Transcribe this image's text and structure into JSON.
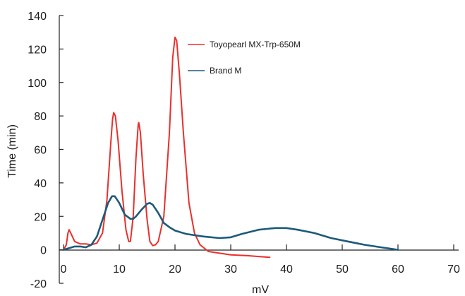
{
  "chart_data": {
    "type": "line",
    "title": "",
    "xlabel": "mV",
    "ylabel": "Time (min)",
    "xlim": [
      0,
      70
    ],
    "ylim": [
      -20,
      140
    ],
    "x_ticks": [
      "0",
      "10",
      "20",
      "30",
      "40",
      "50",
      "60",
      "70"
    ],
    "y_ticks": [
      "140",
      "120",
      "100",
      "80",
      "60",
      "40",
      "20",
      "0",
      "-20"
    ],
    "grid": false,
    "legend_position": "top-right",
    "series": [
      {
        "name": "Toyopearl MX-Trp-650M",
        "color": "#e8302c",
        "points": [
          [
            0,
            0
          ],
          [
            0.5,
            3
          ],
          [
            0.8,
            10
          ],
          [
            1,
            12
          ],
          [
            1.3,
            10
          ],
          [
            2,
            5
          ],
          [
            3,
            3.5
          ],
          [
            4,
            3.5
          ],
          [
            5,
            3
          ],
          [
            6,
            4
          ],
          [
            7,
            10
          ],
          [
            7.8,
            30
          ],
          [
            8.5,
            65
          ],
          [
            8.8,
            78
          ],
          [
            9,
            82
          ],
          [
            9.3,
            80
          ],
          [
            9.8,
            65
          ],
          [
            10.5,
            35
          ],
          [
            11.2,
            12
          ],
          [
            11.7,
            5
          ],
          [
            12,
            5
          ],
          [
            12.5,
            20
          ],
          [
            13,
            55
          ],
          [
            13.4,
            75
          ],
          [
            13.5,
            76
          ],
          [
            13.8,
            70
          ],
          [
            14.3,
            45
          ],
          [
            15,
            18
          ],
          [
            15.5,
            5
          ],
          [
            16,
            2.5
          ],
          [
            16.5,
            3
          ],
          [
            17,
            5
          ],
          [
            18,
            20
          ],
          [
            19,
            70
          ],
          [
            19.6,
            115
          ],
          [
            20,
            127
          ],
          [
            20.3,
            125
          ],
          [
            20.8,
            105
          ],
          [
            21.5,
            70
          ],
          [
            22.5,
            28
          ],
          [
            23.5,
            10
          ],
          [
            24.5,
            3
          ],
          [
            26,
            -1
          ],
          [
            28,
            -2
          ],
          [
            30,
            -3
          ],
          [
            33,
            -3.5
          ],
          [
            35,
            -4
          ],
          [
            37,
            -4.5
          ]
        ]
      },
      {
        "name": "Brand M",
        "color": "#1d5a7a",
        "points": [
          [
            0,
            0
          ],
          [
            1,
            1
          ],
          [
            2,
            2
          ],
          [
            3,
            2
          ],
          [
            4,
            1.5
          ],
          [
            5,
            3
          ],
          [
            6,
            8
          ],
          [
            7,
            18
          ],
          [
            8,
            28
          ],
          [
            8.7,
            32
          ],
          [
            9.2,
            32
          ],
          [
            10,
            28
          ],
          [
            11,
            21
          ],
          [
            12,
            18.5
          ],
          [
            12.5,
            18.5
          ],
          [
            13,
            20
          ],
          [
            14,
            24
          ],
          [
            15,
            27.5
          ],
          [
            15.5,
            28
          ],
          [
            16,
            27
          ],
          [
            17,
            22
          ],
          [
            18,
            16
          ],
          [
            19,
            13.5
          ],
          [
            20,
            11.5
          ],
          [
            22,
            9.5
          ],
          [
            25,
            8
          ],
          [
            28,
            7
          ],
          [
            30,
            7.5
          ],
          [
            32,
            9.5
          ],
          [
            35,
            12
          ],
          [
            38,
            13
          ],
          [
            40,
            13
          ],
          [
            42,
            12
          ],
          [
            45,
            10
          ],
          [
            48,
            7
          ],
          [
            51,
            5
          ],
          [
            54,
            3
          ],
          [
            57,
            1.5
          ],
          [
            59,
            0.5
          ],
          [
            60,
            0
          ]
        ]
      }
    ]
  }
}
